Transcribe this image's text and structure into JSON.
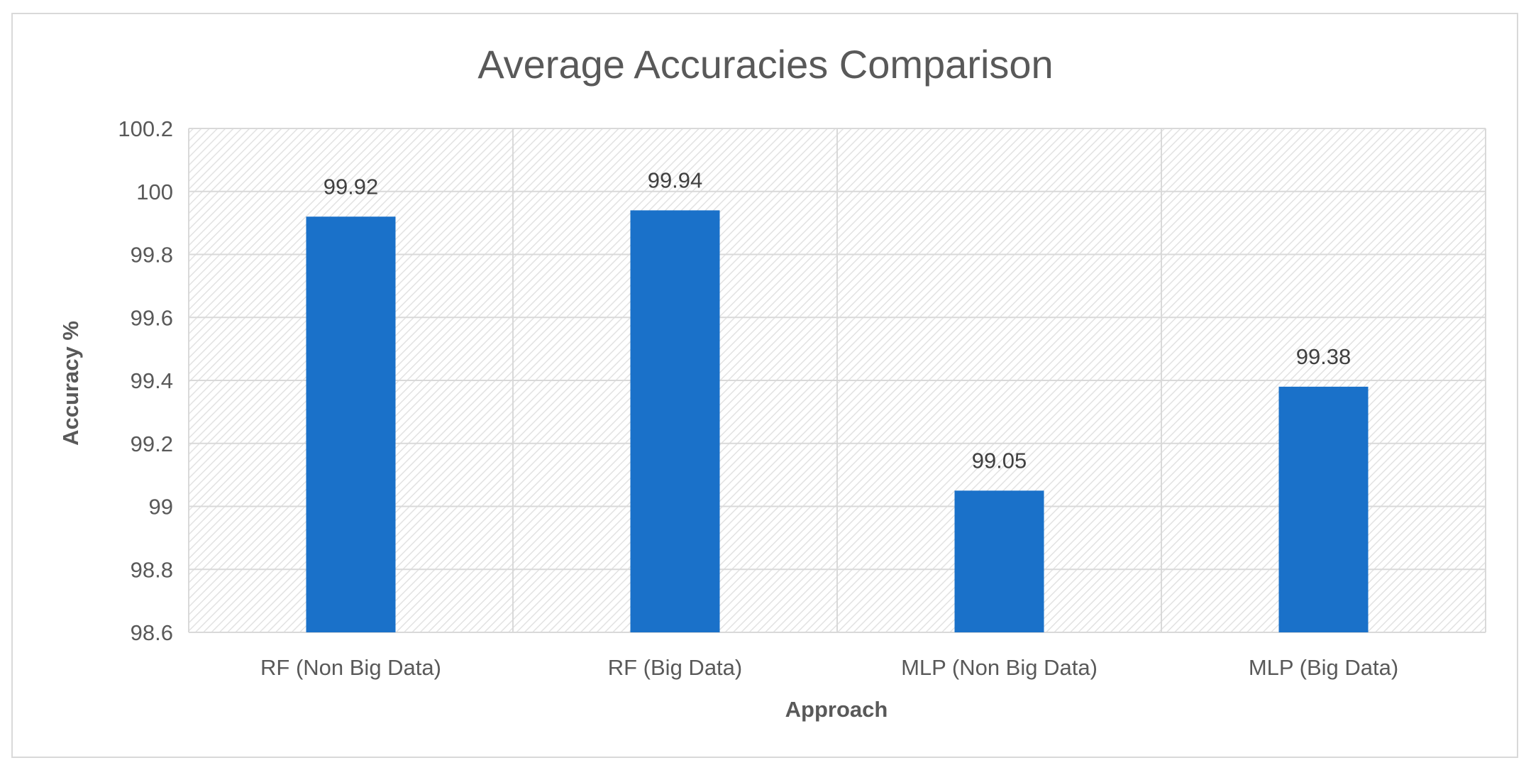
{
  "chart_data": {
    "type": "bar",
    "title": "Average Accuracies Comparison",
    "xlabel": "Approach",
    "ylabel": "Accuracy %",
    "categories": [
      "RF (Non Big Data)",
      "RF (Big Data)",
      "MLP (Non Big Data)",
      "MLP (Big Data)"
    ],
    "values": [
      99.92,
      99.94,
      99.05,
      99.38
    ],
    "data_labels": [
      "99.92",
      "99.94",
      "99.05",
      "99.38"
    ],
    "ylim": [
      98.6,
      100.2
    ],
    "yticks": [
      98.6,
      98.8,
      99,
      99.2,
      99.4,
      99.6,
      99.8,
      100,
      100.2
    ],
    "ytick_labels": [
      "98.6",
      "98.8",
      "99",
      "99.2",
      "99.4",
      "99.6",
      "99.8",
      "100",
      "100.2"
    ],
    "grid": true,
    "legend": "none",
    "colors": {
      "bar": "#1a71c9",
      "grid": "#d9d9d9",
      "hatch": "#e2e2e2",
      "text": "#595959"
    }
  }
}
